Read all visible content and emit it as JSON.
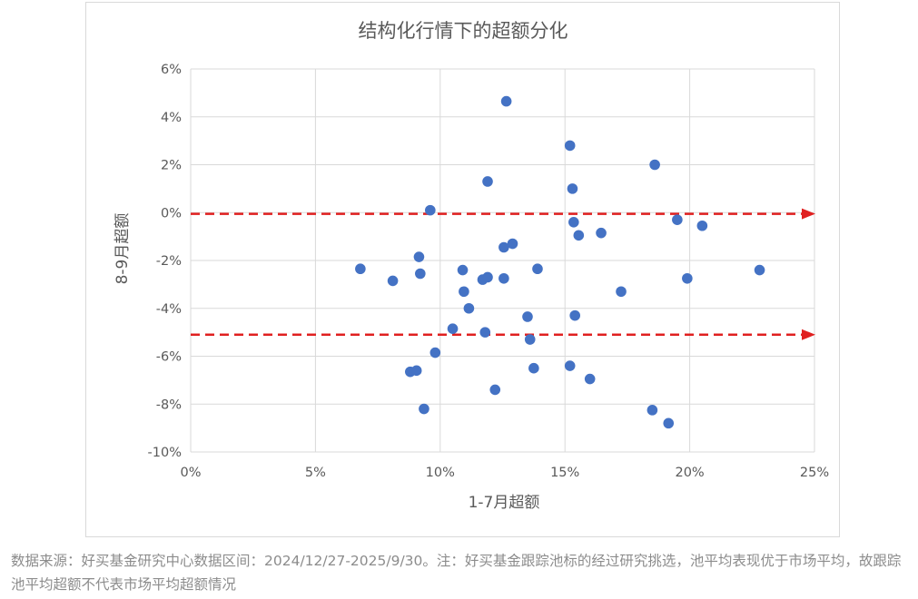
{
  "chart_data": {
    "type": "scatter",
    "title": "结构化行情下的超额分化",
    "xlabel": "1-7月超额",
    "ylabel": "8-9月超额",
    "xlim": [
      0,
      25
    ],
    "ylim": [
      -10,
      6
    ],
    "x_ticks": [
      0,
      5,
      10,
      15,
      20,
      25
    ],
    "x_tick_labels": [
      "0%",
      "5%",
      "10%",
      "15%",
      "20%",
      "25%"
    ],
    "y_ticks": [
      6,
      4,
      2,
      0,
      -2,
      -4,
      -6,
      -8,
      -10
    ],
    "y_tick_labels": [
      "6%",
      "4%",
      "2%",
      "0%",
      "-2%",
      "-4%",
      "-6%",
      "-8%",
      "-10%"
    ],
    "grid": true,
    "point_color": "#4472c4",
    "reference_line_color": "#e02020",
    "reference_lines_y": [
      -0.05,
      -5.1
    ],
    "points": [
      {
        "x": 6.8,
        "y": -2.35
      },
      {
        "x": 8.1,
        "y": -2.85
      },
      {
        "x": 8.8,
        "y": -6.65
      },
      {
        "x": 9.05,
        "y": -6.6
      },
      {
        "x": 9.15,
        "y": -1.85
      },
      {
        "x": 9.2,
        "y": -2.55
      },
      {
        "x": 9.35,
        "y": -8.2
      },
      {
        "x": 9.6,
        "y": 0.1
      },
      {
        "x": 9.8,
        "y": -5.85
      },
      {
        "x": 10.5,
        "y": -4.85
      },
      {
        "x": 10.9,
        "y": -2.4
      },
      {
        "x": 10.95,
        "y": -3.3
      },
      {
        "x": 11.15,
        "y": -4.0
      },
      {
        "x": 11.7,
        "y": -2.8
      },
      {
        "x": 11.8,
        "y": -5.0
      },
      {
        "x": 11.9,
        "y": -2.7
      },
      {
        "x": 11.9,
        "y": 1.3
      },
      {
        "x": 12.2,
        "y": -7.4
      },
      {
        "x": 12.55,
        "y": -1.45
      },
      {
        "x": 12.55,
        "y": -2.75
      },
      {
        "x": 12.65,
        "y": 4.65
      },
      {
        "x": 12.9,
        "y": -1.3
      },
      {
        "x": 13.5,
        "y": -4.35
      },
      {
        "x": 13.6,
        "y": -5.3
      },
      {
        "x": 13.75,
        "y": -6.5
      },
      {
        "x": 13.9,
        "y": -2.35
      },
      {
        "x": 15.2,
        "y": 2.8
      },
      {
        "x": 15.2,
        "y": -6.4
      },
      {
        "x": 15.3,
        "y": 1.0
      },
      {
        "x": 15.35,
        "y": -0.4
      },
      {
        "x": 15.4,
        "y": -4.3
      },
      {
        "x": 15.55,
        "y": -0.95
      },
      {
        "x": 16.0,
        "y": -6.95
      },
      {
        "x": 16.45,
        "y": -0.85
      },
      {
        "x": 17.25,
        "y": -3.3
      },
      {
        "x": 18.5,
        "y": -8.25
      },
      {
        "x": 18.6,
        "y": 2.0
      },
      {
        "x": 19.15,
        "y": -8.8
      },
      {
        "x": 19.5,
        "y": -0.3
      },
      {
        "x": 19.9,
        "y": -2.75
      },
      {
        "x": 20.5,
        "y": -0.55
      },
      {
        "x": 22.8,
        "y": -2.4
      }
    ]
  },
  "caption": "数据来源：好买基金研究中心数据区间：2024/12/27-2025/9/30。注：好买基金跟踪池标的经过研究挑选，池平均表现优于市场平均，故跟踪池平均超额不代表市场平均超额情况"
}
